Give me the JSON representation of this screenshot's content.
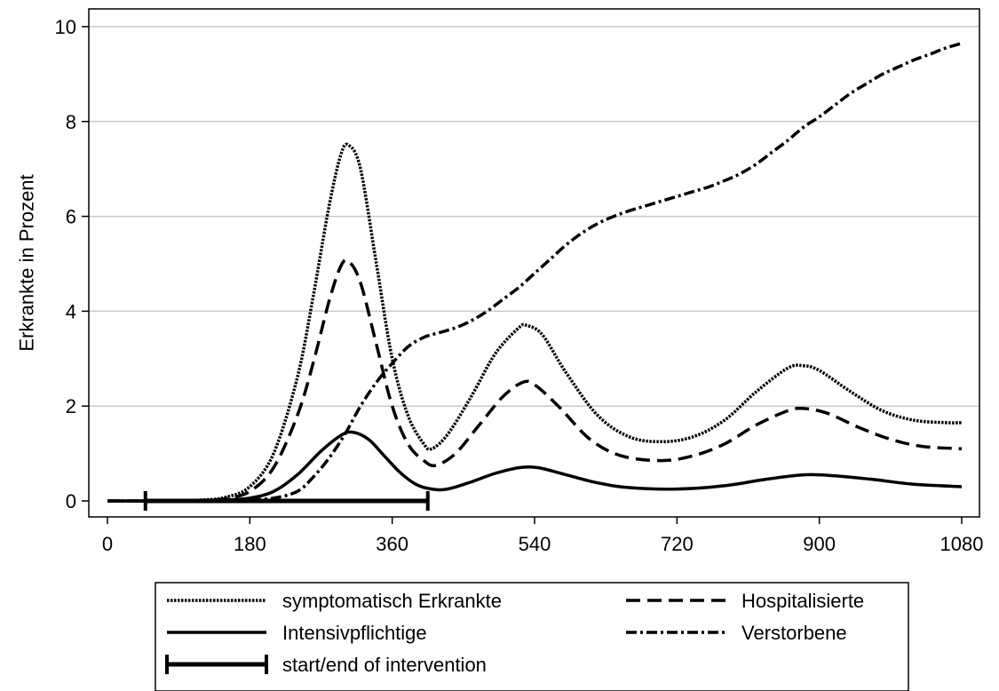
{
  "chart_data": {
    "type": "line",
    "title": "",
    "xlabel": "",
    "ylabel": "Erkrankte in Prozent",
    "xlim": [
      0,
      1080
    ],
    "ylim": [
      0,
      10
    ],
    "x_ticks": [
      0,
      180,
      360,
      540,
      720,
      900,
      1080
    ],
    "y_ticks": [
      0,
      2,
      4,
      6,
      8,
      10
    ],
    "grid": "horizontal",
    "legend_position": "bottom",
    "series": [
      {
        "name": "symptomatisch Erkrankte",
        "style": "dotted",
        "points": [
          [
            0,
            0
          ],
          [
            60,
            0
          ],
          [
            120,
            0.02
          ],
          [
            150,
            0.08
          ],
          [
            180,
            0.3
          ],
          [
            210,
            1.0
          ],
          [
            240,
            2.6
          ],
          [
            260,
            4.3
          ],
          [
            280,
            6.2
          ],
          [
            295,
            7.3
          ],
          [
            305,
            7.5
          ],
          [
            320,
            7.0
          ],
          [
            340,
            5.0
          ],
          [
            360,
            3.0
          ],
          [
            380,
            1.8
          ],
          [
            400,
            1.2
          ],
          [
            410,
            1.1
          ],
          [
            430,
            1.4
          ],
          [
            460,
            2.2
          ],
          [
            490,
            3.1
          ],
          [
            520,
            3.65
          ],
          [
            530,
            3.7
          ],
          [
            550,
            3.5
          ],
          [
            580,
            2.7
          ],
          [
            620,
            1.8
          ],
          [
            660,
            1.35
          ],
          [
            700,
            1.25
          ],
          [
            740,
            1.35
          ],
          [
            780,
            1.7
          ],
          [
            820,
            2.3
          ],
          [
            860,
            2.8
          ],
          [
            880,
            2.85
          ],
          [
            900,
            2.75
          ],
          [
            940,
            2.3
          ],
          [
            980,
            1.9
          ],
          [
            1020,
            1.7
          ],
          [
            1060,
            1.65
          ],
          [
            1080,
            1.65
          ]
        ]
      },
      {
        "name": "Hospitalisierte",
        "style": "dashed",
        "points": [
          [
            0,
            0
          ],
          [
            60,
            0
          ],
          [
            120,
            0.01
          ],
          [
            150,
            0.05
          ],
          [
            180,
            0.2
          ],
          [
            210,
            0.7
          ],
          [
            240,
            1.8
          ],
          [
            260,
            2.9
          ],
          [
            280,
            4.2
          ],
          [
            295,
            4.95
          ],
          [
            305,
            5.05
          ],
          [
            320,
            4.6
          ],
          [
            340,
            3.3
          ],
          [
            360,
            2.0
          ],
          [
            380,
            1.2
          ],
          [
            400,
            0.85
          ],
          [
            415,
            0.75
          ],
          [
            440,
            1.0
          ],
          [
            470,
            1.6
          ],
          [
            500,
            2.2
          ],
          [
            525,
            2.5
          ],
          [
            540,
            2.45
          ],
          [
            570,
            2.0
          ],
          [
            610,
            1.3
          ],
          [
            650,
            0.95
          ],
          [
            700,
            0.85
          ],
          [
            740,
            0.95
          ],
          [
            780,
            1.2
          ],
          [
            820,
            1.6
          ],
          [
            860,
            1.9
          ],
          [
            880,
            1.95
          ],
          [
            910,
            1.85
          ],
          [
            950,
            1.55
          ],
          [
            990,
            1.3
          ],
          [
            1030,
            1.15
          ],
          [
            1080,
            1.1
          ]
        ]
      },
      {
        "name": "Intensivpflichtige",
        "style": "solid",
        "points": [
          [
            0,
            0
          ],
          [
            60,
            0
          ],
          [
            120,
            0.005
          ],
          [
            150,
            0.02
          ],
          [
            180,
            0.06
          ],
          [
            210,
            0.2
          ],
          [
            240,
            0.55
          ],
          [
            270,
            1.05
          ],
          [
            295,
            1.38
          ],
          [
            310,
            1.45
          ],
          [
            330,
            1.3
          ],
          [
            350,
            0.95
          ],
          [
            370,
            0.6
          ],
          [
            390,
            0.35
          ],
          [
            410,
            0.25
          ],
          [
            430,
            0.25
          ],
          [
            460,
            0.4
          ],
          [
            490,
            0.58
          ],
          [
            520,
            0.7
          ],
          [
            545,
            0.7
          ],
          [
            580,
            0.55
          ],
          [
            620,
            0.38
          ],
          [
            660,
            0.28
          ],
          [
            720,
            0.25
          ],
          [
            780,
            0.32
          ],
          [
            830,
            0.45
          ],
          [
            880,
            0.55
          ],
          [
            920,
            0.53
          ],
          [
            970,
            0.45
          ],
          [
            1020,
            0.35
          ],
          [
            1080,
            0.3
          ]
        ]
      },
      {
        "name": "Verstorbene",
        "style": "dashdot",
        "points": [
          [
            0,
            0
          ],
          [
            60,
            0
          ],
          [
            150,
            0
          ],
          [
            180,
            0.02
          ],
          [
            210,
            0.06
          ],
          [
            240,
            0.2
          ],
          [
            260,
            0.5
          ],
          [
            280,
            0.9
          ],
          [
            300,
            1.4
          ],
          [
            320,
            2.0
          ],
          [
            340,
            2.5
          ],
          [
            360,
            2.9
          ],
          [
            380,
            3.25
          ],
          [
            400,
            3.45
          ],
          [
            420,
            3.55
          ],
          [
            440,
            3.65
          ],
          [
            460,
            3.8
          ],
          [
            480,
            4.0
          ],
          [
            500,
            4.25
          ],
          [
            520,
            4.5
          ],
          [
            540,
            4.8
          ],
          [
            560,
            5.1
          ],
          [
            580,
            5.4
          ],
          [
            600,
            5.65
          ],
          [
            620,
            5.85
          ],
          [
            640,
            6.0
          ],
          [
            660,
            6.12
          ],
          [
            680,
            6.22
          ],
          [
            700,
            6.32
          ],
          [
            720,
            6.42
          ],
          [
            740,
            6.52
          ],
          [
            760,
            6.62
          ],
          [
            780,
            6.75
          ],
          [
            800,
            6.9
          ],
          [
            820,
            7.1
          ],
          [
            840,
            7.35
          ],
          [
            860,
            7.6
          ],
          [
            880,
            7.88
          ],
          [
            900,
            8.1
          ],
          [
            920,
            8.35
          ],
          [
            940,
            8.6
          ],
          [
            960,
            8.8
          ],
          [
            980,
            9.0
          ],
          [
            1000,
            9.15
          ],
          [
            1020,
            9.3
          ],
          [
            1040,
            9.42
          ],
          [
            1060,
            9.55
          ],
          [
            1080,
            9.65
          ]
        ]
      }
    ],
    "intervention": {
      "name": "start/end of intervention",
      "start": 48,
      "end": 405
    }
  }
}
